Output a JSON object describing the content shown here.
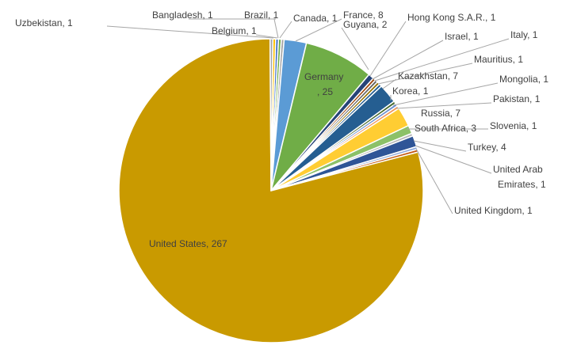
{
  "chart_data": {
    "type": "pie",
    "title": "",
    "legend": "none",
    "slices": [
      {
        "label": "Bangladesh",
        "value": 1,
        "color": "#FFC000",
        "text": "Bangladesh, 1"
      },
      {
        "label": "Belgium",
        "value": 1,
        "color": "#4472C4",
        "text": "Belgium, 1"
      },
      {
        "label": "Brazil",
        "value": 1,
        "color": "#70AD47",
        "text": "Brazil, 1"
      },
      {
        "label": "Canada",
        "value": 1,
        "color": "#A5A5A5",
        "text": "Canada, 1"
      },
      {
        "label": "France",
        "value": 8,
        "color": "#5B9BD5",
        "text": "France, 8"
      },
      {
        "label": "Germany",
        "value": 25,
        "color": "#70AD47",
        "text": "Germany , 25"
      },
      {
        "label": "Guyana",
        "value": 2,
        "color": "#264478",
        "text": "Guyana, 2"
      },
      {
        "label": "Hong Kong S.A.R.",
        "value": 1,
        "color": "#9E480E",
        "text": "Hong Kong S.A.R., 1"
      },
      {
        "label": "Israel",
        "value": 1,
        "color": "#636363",
        "text": "Israel, 1"
      },
      {
        "label": "Italy",
        "value": 1,
        "color": "#997300",
        "text": "Italy, 1"
      },
      {
        "label": "Mauritius",
        "value": 1,
        "color": "#255E91",
        "text": "Mauritius, 1"
      },
      {
        "label": "Kazakhstan",
        "value": 7,
        "color": "#255E91",
        "text": "Kazakhstan, 7"
      },
      {
        "label": "Korea",
        "value": 1,
        "color": "#43682B",
        "text": "Korea, 1"
      },
      {
        "label": "Mongolia",
        "value": 1,
        "color": "#698ED0",
        "text": "Mongolia, 1"
      },
      {
        "label": "Pakistan",
        "value": 1,
        "color": "#F1975A",
        "text": "Pakistan, 1"
      },
      {
        "label": "Russia",
        "value": 7,
        "color": "#FFCD33",
        "text": "Russia, 7"
      },
      {
        "label": "South Africa",
        "value": 3,
        "color": "#8CC168",
        "text": "South Africa, 3"
      },
      {
        "label": "Slovenia",
        "value": 1,
        "color": "#B7B7B7",
        "text": "Slovenia, 1"
      },
      {
        "label": "Turkey",
        "value": 4,
        "color": "#2F5597",
        "text": "Turkey, 4"
      },
      {
        "label": "United Arab Emirates",
        "value": 1,
        "color": "#8FAADC",
        "text": "United Arab Emirates, 1"
      },
      {
        "label": "United Kingdom",
        "value": 1,
        "color": "#C55A11",
        "text": "United Kingdom, 1"
      },
      {
        "label": "United States",
        "value": 267,
        "color": "#C99A00",
        "text": "United States, 267"
      },
      {
        "label": "Uzbekistan",
        "value": 1,
        "color": "#A5A5A5",
        "text": "Uzbekistan, 1"
      }
    ]
  }
}
